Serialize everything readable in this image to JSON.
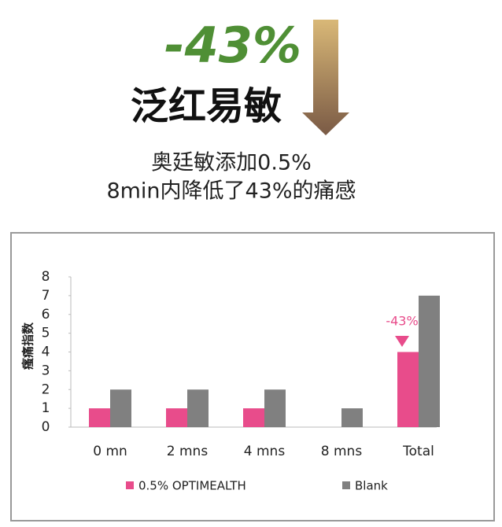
{
  "header": {
    "badge": "-43%",
    "title": "泛红易敏",
    "line1": "奥廷敏添加0.5%",
    "line2": "8min内降低了43%的痛感"
  },
  "chart_data": {
    "type": "bar",
    "ylabel": "瘙痛指数",
    "categories": [
      "0 mn",
      "2 mns",
      "4 mns",
      "8 mns",
      "Total"
    ],
    "series": [
      {
        "name": "0.5% OPTIMEALTH",
        "color": "#e84c8b",
        "values": [
          1,
          1,
          1,
          null,
          4
        ]
      },
      {
        "name": "Blank",
        "color": "#808080",
        "values": [
          2,
          2,
          2,
          1,
          7
        ]
      }
    ],
    "annotation": "-43%",
    "ylim": [
      0,
      8
    ],
    "yticks": [
      0,
      1,
      2,
      3,
      4,
      5,
      6,
      7,
      8
    ],
    "grid": false
  }
}
